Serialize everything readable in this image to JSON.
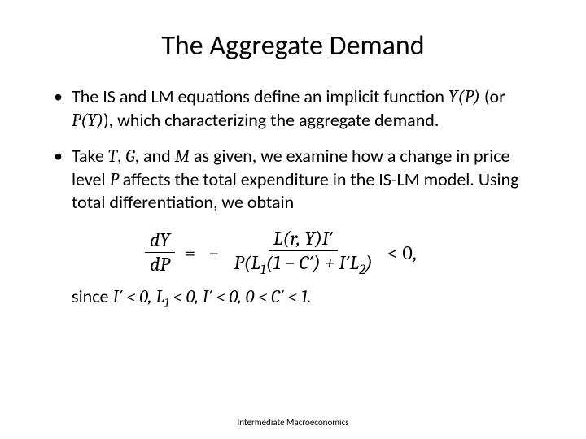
{
  "slide": {
    "title": "The Aggregate Demand",
    "footer": "Intermediate Macroeconomics",
    "background_color": "#ffffff",
    "text_color": "#000000",
    "title_fontsize": 34,
    "body_fontsize": 22,
    "bullets": {
      "b1_pre": "The IS and LM equations define an implicit function ",
      "b1_YP": "Y(P)",
      "b1_mid1": " (or ",
      "b1_PY": "P(Y)",
      "b1_post": "), which characterizing the aggregate demand.",
      "b2_pre": "Take ",
      "b2_T": "T",
      "b2_c1": ", ",
      "b2_G": "G",
      "b2_c2": ", and ",
      "b2_M": "M",
      "b2_mid1": " as given, we examine how a change in price level ",
      "b2_P": "P",
      "b2_post": " affects the total expenditure in the IS-LM model. Using total differentiation, we obtain"
    },
    "equation": {
      "lhs_num": "dY",
      "lhs_den": "dP",
      "eq": " = ",
      "neg": "−",
      "rhs_num": "L(r, Y)I′",
      "rhs_den_pre": "P(L",
      "rhs_den_sub1": "1",
      "rhs_den_mid1": "(1 − C′) + I′L",
      "rhs_den_sub2": "2",
      "rhs_den_post": ")",
      "tail": " < 0,"
    },
    "since": {
      "pre": "since ",
      "c1": "I′ < 0, L",
      "c1_sub": "1",
      "c2": " < 0, I′ < 0, 0 < C′ < 1.",
      "end": ""
    }
  }
}
